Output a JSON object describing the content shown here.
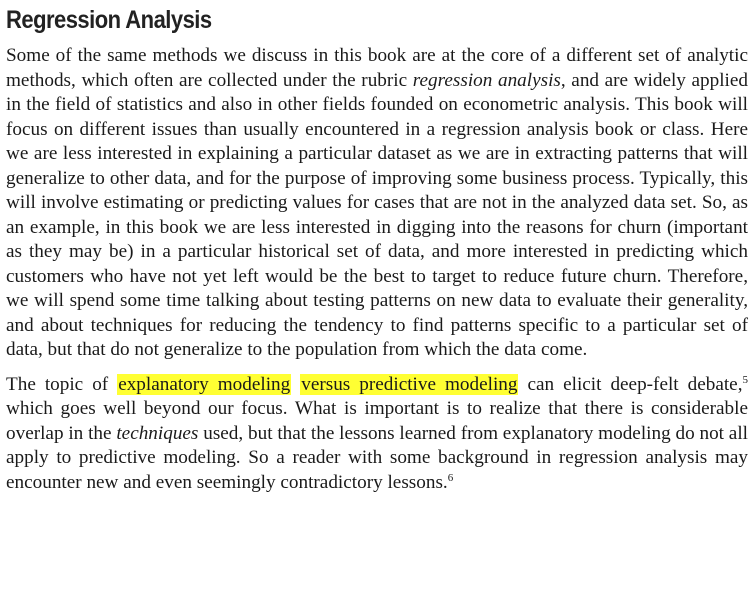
{
  "heading": "Regression Analysis",
  "p1": {
    "t1": "Some of the same methods we discuss in this book are at the core of a different set of analytic methods, which often are collected under the rubric ",
    "em1": "regression analysis",
    "t2": ", and are widely applied in the field of statistics and also in other fields founded on econo­metric analysis. This book will focus on different issues than usually encountered in a regression analysis book or class. Here we are less interested in explaining a particular dataset as we are in extracting patterns that will generalize to other data, and for the purpose of improving some business process. Typically, this will involve estimating or predicting values for cases that are not in the analyzed data set. So, as an example, in this book we are less interested in digging into the reasons for churn (important as they may be) in a particular historical set of data, and more interested in predicting which customers who have not yet left would be the best to target to reduce future churn. Therefore, we will spend some time talking about testing patterns on new data to eval­uate their generality, and about techniques for reducing the tendency to find patterns specific to a particular set of data, but that do not generalize to the population from which the data come."
  },
  "p2": {
    "t1": "The topic of ",
    "hl1": "explanatory modeling",
    "t_space": " ",
    "hl2": "versus predictive modeling",
    "t2": " can elicit deep-felt de­bate,",
    "fn1": "5",
    "t3": " which goes well beyond our focus. What is important is to realize that there is considerable overlap in the ",
    "em1": "techniques",
    "t4": " used, but that the lessons learned from explana­tory modeling do not all apply to predictive modeling. So a reader with some back­ground in regression analysis may encounter new and even seemingly contradictory lessons.",
    "fn2": "6"
  },
  "colors": {
    "highlight": "#ffff33",
    "text": "#1a1a1a",
    "heading": "#222222"
  }
}
